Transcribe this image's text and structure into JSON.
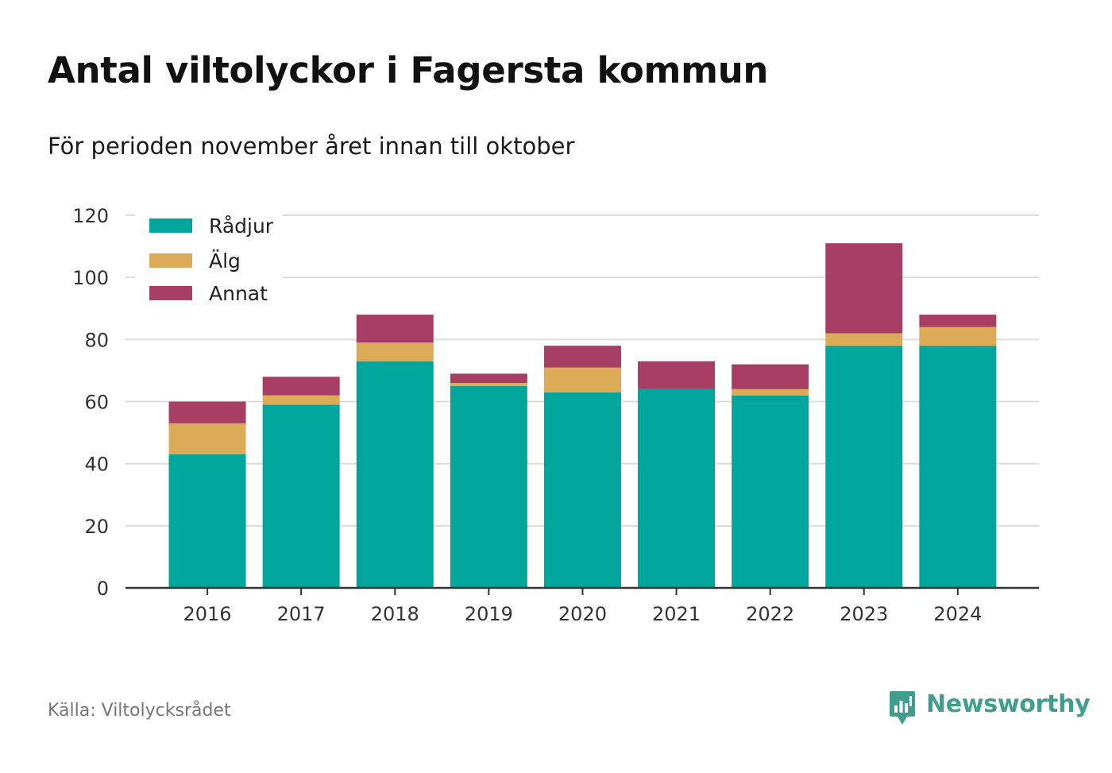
{
  "header": {
    "title": "Antal viltolyckor i Fagersta kommun",
    "subtitle": "För perioden november året innan till oktober"
  },
  "footer": {
    "source": "Källa: Viltolycksrådet",
    "brand": "Newsworthy"
  },
  "colors": {
    "radjur": "#00a59b",
    "alg": "#dcab57",
    "annat": "#a63f63",
    "grid": "#dddddd",
    "axis": "#333333",
    "brand": "#3f9e8e"
  },
  "chart_data": {
    "type": "bar",
    "stacked": true,
    "title": "Antal viltolyckor i Fagersta kommun",
    "subtitle": "För perioden november året innan till oktober",
    "categories": [
      "2016",
      "2017",
      "2018",
      "2019",
      "2020",
      "2021",
      "2022",
      "2023",
      "2024"
    ],
    "series": [
      {
        "name": "Rådjur",
        "color": "#00a59b",
        "values": [
          43,
          59,
          73,
          65,
          63,
          64,
          62,
          78,
          78
        ]
      },
      {
        "name": "Älg",
        "color": "#dcab57",
        "values": [
          10,
          3,
          6,
          1,
          8,
          0,
          2,
          4,
          6
        ]
      },
      {
        "name": "Annat",
        "color": "#a63f63",
        "values": [
          7,
          6,
          9,
          3,
          7,
          9,
          8,
          29,
          4
        ]
      }
    ],
    "ylim": [
      0,
      120
    ],
    "yticks": [
      0,
      20,
      40,
      60,
      80,
      100,
      120
    ],
    "grid": true,
    "legend": "top-left"
  }
}
